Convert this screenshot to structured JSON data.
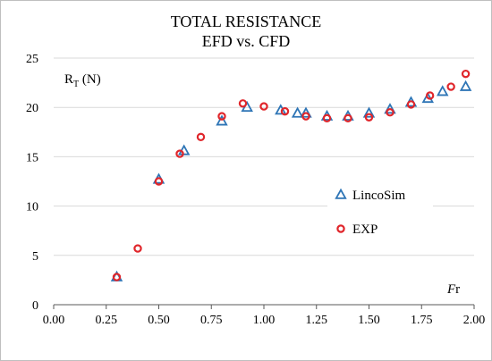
{
  "chart_data": {
    "type": "scatter",
    "title_line1": "TOTAL RESISTANCE",
    "title_line2": "EFD vs. CFD",
    "ylabel_main": "R",
    "ylabel_sub": "T",
    "ylabel_unit": " (N)",
    "xlabel_main": "F",
    "xlabel_sub": "r",
    "xlim": [
      0,
      2
    ],
    "ylim": [
      0,
      25
    ],
    "x_ticks": [
      "0.00",
      "0.25",
      "0.50",
      "0.75",
      "1.00",
      "1.25",
      "1.50",
      "1.75",
      "2.00"
    ],
    "x_tick_values": [
      0,
      0.25,
      0.5,
      0.75,
      1.0,
      1.25,
      1.5,
      1.75,
      2.0
    ],
    "y_ticks": [
      "0",
      "5",
      "10",
      "15",
      "20",
      "25"
    ],
    "y_tick_values": [
      0,
      5,
      10,
      15,
      20,
      25
    ],
    "grid": "horizontal",
    "legend_position": "right",
    "series": [
      {
        "name": "LincoSim",
        "marker": "triangle",
        "color": "#2E75B6",
        "points": [
          [
            0.3,
            2.8
          ],
          [
            0.5,
            12.7
          ],
          [
            0.62,
            15.6
          ],
          [
            0.8,
            18.6
          ],
          [
            0.92,
            20.0
          ],
          [
            1.08,
            19.7
          ],
          [
            1.16,
            19.4
          ],
          [
            1.2,
            19.4
          ],
          [
            1.3,
            19.1
          ],
          [
            1.4,
            19.1
          ],
          [
            1.5,
            19.4
          ],
          [
            1.6,
            19.8
          ],
          [
            1.7,
            20.5
          ],
          [
            1.78,
            20.9
          ],
          [
            1.85,
            21.6
          ],
          [
            1.96,
            22.1
          ]
        ]
      },
      {
        "name": "EXP",
        "marker": "circle",
        "color": "#E0262B",
        "points": [
          [
            0.3,
            2.8
          ],
          [
            0.4,
            5.7
          ],
          [
            0.5,
            12.5
          ],
          [
            0.6,
            15.3
          ],
          [
            0.7,
            17.0
          ],
          [
            0.8,
            19.1
          ],
          [
            0.9,
            20.4
          ],
          [
            1.0,
            20.1
          ],
          [
            1.1,
            19.6
          ],
          [
            1.2,
            19.1
          ],
          [
            1.3,
            18.9
          ],
          [
            1.4,
            18.9
          ],
          [
            1.5,
            19.0
          ],
          [
            1.6,
            19.5
          ],
          [
            1.7,
            20.3
          ],
          [
            1.79,
            21.2
          ],
          [
            1.89,
            22.1
          ],
          [
            1.96,
            23.4
          ]
        ]
      }
    ]
  }
}
